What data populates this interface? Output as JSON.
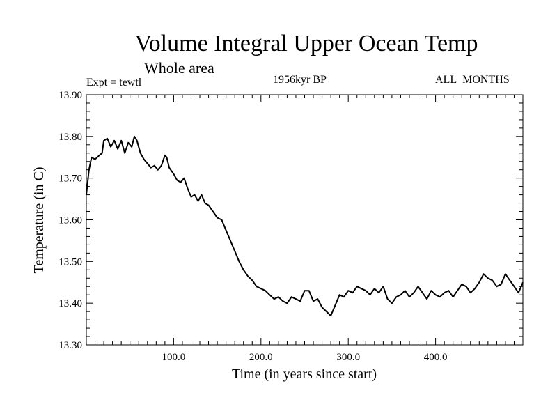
{
  "header": {
    "title": "Volume Integral Upper Ocean Temp",
    "subtitle": "Whole area",
    "experiment": "Expt = tewtl",
    "period": "1956kyr BP",
    "months": "ALL_MONTHS"
  },
  "chart_data": {
    "type": "line",
    "title": "Volume Integral Upper Ocean Temp",
    "xlabel": "Time (in years since start)",
    "ylabel": "Temperature (in C)",
    "xlim": [
      0,
      500
    ],
    "ylim": [
      13.3,
      13.9
    ],
    "x_ticks": [
      100,
      200,
      300,
      400
    ],
    "x_tick_labels": [
      "100.0",
      "200.0",
      "300.0",
      "400.0"
    ],
    "y_ticks": [
      13.3,
      13.4,
      13.5,
      13.6,
      13.7,
      13.8,
      13.9
    ],
    "y_tick_labels": [
      "13.30",
      "13.40",
      "13.50",
      "13.60",
      "13.70",
      "13.80",
      "13.90"
    ],
    "grid": false,
    "series": [
      {
        "name": "Temperature",
        "x": [
          0,
          3,
          6,
          10,
          15,
          18,
          20,
          24,
          28,
          32,
          36,
          40,
          44,
          48,
          52,
          55,
          58,
          62,
          66,
          70,
          74,
          78,
          82,
          86,
          90,
          92,
          95,
          100,
          104,
          108,
          112,
          116,
          120,
          124,
          128,
          132,
          136,
          140,
          145,
          150,
          155,
          160,
          165,
          170,
          175,
          180,
          185,
          190,
          195,
          200,
          205,
          210,
          215,
          220,
          225,
          230,
          235,
          240,
          245,
          250,
          255,
          260,
          265,
          270,
          275,
          280,
          285,
          290,
          295,
          300,
          305,
          310,
          315,
          320,
          325,
          330,
          335,
          340,
          345,
          350,
          355,
          360,
          365,
          370,
          375,
          380,
          385,
          390,
          395,
          400,
          405,
          410,
          415,
          420,
          425,
          430,
          435,
          440,
          445,
          450,
          455,
          460,
          465,
          470,
          475,
          480,
          485,
          490,
          495,
          500
        ],
        "values": [
          13.66,
          13.72,
          13.75,
          13.745,
          13.755,
          13.76,
          13.79,
          13.795,
          13.775,
          13.79,
          13.77,
          13.79,
          13.76,
          13.785,
          13.775,
          13.8,
          13.79,
          13.76,
          13.745,
          13.735,
          13.725,
          13.73,
          13.72,
          13.73,
          13.755,
          13.75,
          13.725,
          13.71,
          13.695,
          13.69,
          13.7,
          13.675,
          13.655,
          13.66,
          13.645,
          13.66,
          13.64,
          13.635,
          13.62,
          13.605,
          13.6,
          13.575,
          13.55,
          13.525,
          13.5,
          13.48,
          13.465,
          13.455,
          13.44,
          13.435,
          13.43,
          13.42,
          13.41,
          13.415,
          13.405,
          13.4,
          13.415,
          13.41,
          13.405,
          13.43,
          13.43,
          13.405,
          13.41,
          13.39,
          13.38,
          13.37,
          13.395,
          13.42,
          13.415,
          13.43,
          13.425,
          13.44,
          13.435,
          13.43,
          13.42,
          13.435,
          13.425,
          13.44,
          13.41,
          13.4,
          13.415,
          13.42,
          13.43,
          13.415,
          13.425,
          13.44,
          13.425,
          13.41,
          13.43,
          13.42,
          13.415,
          13.425,
          13.43,
          13.415,
          13.43,
          13.445,
          13.44,
          13.425,
          13.435,
          13.45,
          13.47,
          13.46,
          13.455,
          13.44,
          13.445,
          13.47,
          13.455,
          13.44,
          13.425,
          13.45
        ]
      }
    ]
  }
}
